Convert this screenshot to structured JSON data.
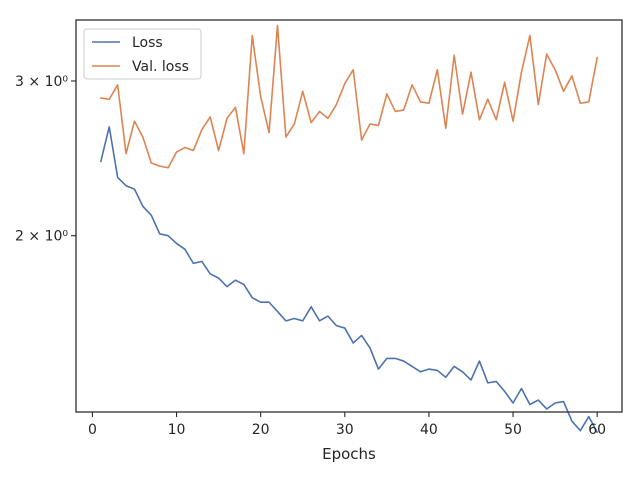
{
  "chart_data": {
    "type": "line",
    "xlabel": "Epochs",
    "ylabel": "",
    "yscale": "log",
    "xlim": [
      -1.95,
      62.95
    ],
    "ylim": [
      1.26,
      3.52
    ],
    "x_ticks": [
      0,
      10,
      20,
      30,
      40,
      50,
      60
    ],
    "y_ticks": [
      {
        "value": 2,
        "label": "2 × 10⁰"
      },
      {
        "value": 3,
        "label": "3 × 10⁰"
      }
    ],
    "grid": false,
    "legend": "upper-left",
    "x": [
      1,
      2,
      3,
      4,
      5,
      6,
      7,
      8,
      9,
      10,
      11,
      12,
      13,
      14,
      15,
      16,
      17,
      18,
      19,
      20,
      21,
      22,
      23,
      24,
      25,
      26,
      27,
      28,
      29,
      30,
      31,
      32,
      33,
      34,
      35,
      36,
      37,
      38,
      39,
      40,
      41,
      42,
      43,
      44,
      45,
      46,
      47,
      48,
      49,
      50,
      51,
      52,
      53,
      54,
      55,
      56,
      57,
      58,
      59,
      60
    ],
    "series": [
      {
        "name": "Loss",
        "color": "#4c72b0",
        "values": [
          2.43,
          2.66,
          2.33,
          2.28,
          2.26,
          2.16,
          2.11,
          2.01,
          2.0,
          1.96,
          1.93,
          1.86,
          1.87,
          1.81,
          1.79,
          1.75,
          1.78,
          1.76,
          1.7,
          1.68,
          1.68,
          1.64,
          1.6,
          1.61,
          1.6,
          1.66,
          1.6,
          1.62,
          1.58,
          1.57,
          1.51,
          1.54,
          1.49,
          1.41,
          1.45,
          1.45,
          1.44,
          1.42,
          1.4,
          1.41,
          1.405,
          1.38,
          1.42,
          1.4,
          1.37,
          1.44,
          1.36,
          1.365,
          1.33,
          1.29,
          1.34,
          1.285,
          1.3,
          1.27,
          1.29,
          1.295,
          1.23,
          1.2,
          1.245,
          1.195
        ]
      },
      {
        "name": "Val. loss",
        "color": "#dd8452",
        "values": [
          2.87,
          2.86,
          2.97,
          2.48,
          2.7,
          2.59,
          2.42,
          2.4,
          2.39,
          2.49,
          2.52,
          2.5,
          2.64,
          2.73,
          2.5,
          2.72,
          2.8,
          2.48,
          3.38,
          2.88,
          2.62,
          3.47,
          2.59,
          2.68,
          2.92,
          2.69,
          2.77,
          2.72,
          2.82,
          2.98,
          3.09,
          2.57,
          2.68,
          2.67,
          2.9,
          2.77,
          2.78,
          2.97,
          2.84,
          2.83,
          3.09,
          2.65,
          3.21,
          2.75,
          3.07,
          2.71,
          2.86,
          2.71,
          2.99,
          2.7,
          3.07,
          3.38,
          2.82,
          3.22,
          3.09,
          2.92,
          3.04,
          2.83,
          2.84,
          3.19
        ]
      }
    ]
  }
}
